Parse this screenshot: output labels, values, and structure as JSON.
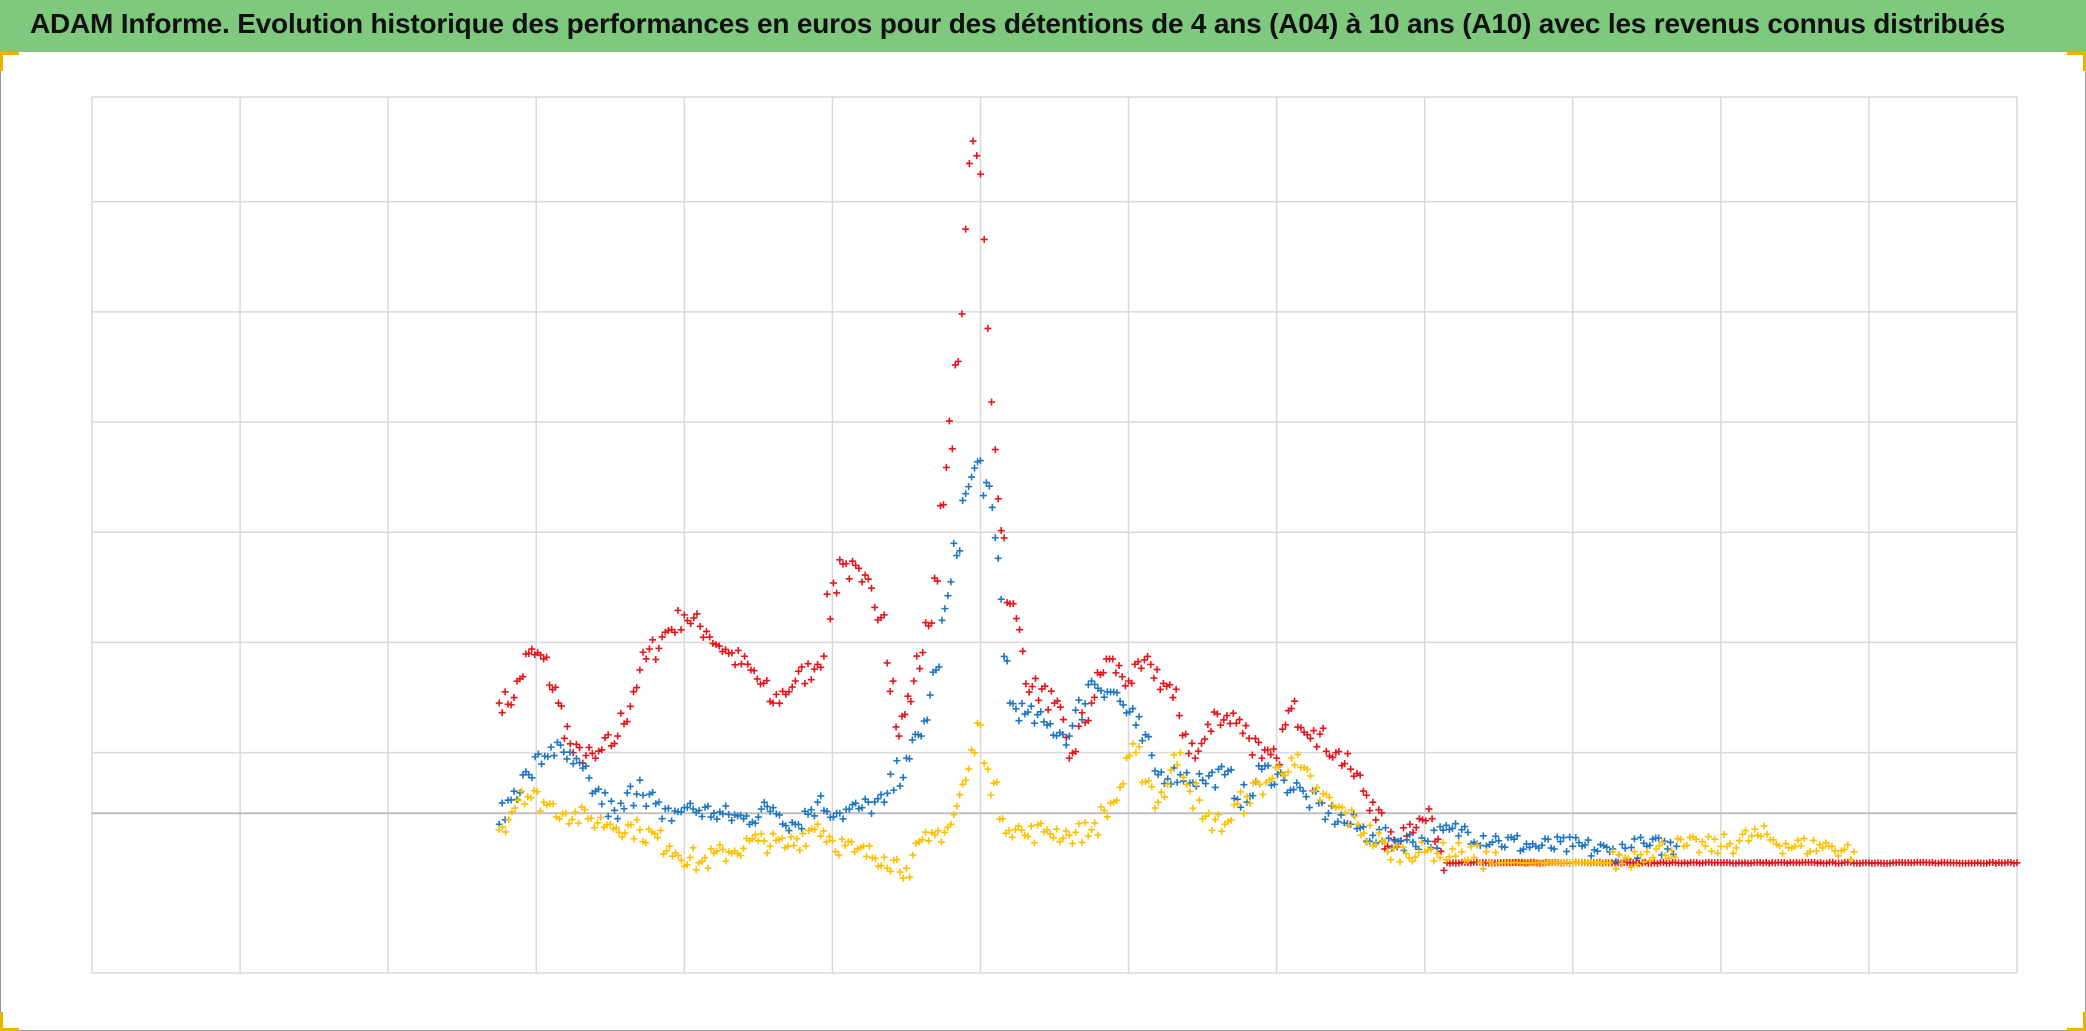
{
  "title": "ADAM Informe. Evolution historique des performances en euros pour des détentions de 4 ans (A04) à 10 ans (A10) avec les revenus connus distribués",
  "colors": {
    "title_bar": "#7fc97f",
    "grid": "#d9d9d9",
    "baseline": "#bfbfbf",
    "corner_marks": "#e8b400"
  },
  "chart_data": {
    "type": "scatter",
    "marker": "plus",
    "title": "ADAM Informe. Evolution historique des performances en euros pour des détentions de 4 ans (A04) à 10 ans (A10) avec les revenus connus distribués",
    "xlabel": "",
    "ylabel": "",
    "xlim": [
      0,
      13
    ],
    "ylim": [
      -1.45,
      6.5
    ],
    "grid": true,
    "gridlines_x": [
      1,
      2,
      3,
      4,
      5,
      6,
      7,
      8,
      9,
      10,
      11,
      12,
      13
    ],
    "gridlines_y": [
      0,
      0.55,
      1.55,
      2.55,
      3.55,
      4.55,
      5.55,
      6.5
    ],
    "legend": "none",
    "series": [
      {
        "color": "#e8131b",
        "points": [
          [
            2.75,
            1.0
          ],
          [
            2.85,
            1.05
          ],
          [
            2.95,
            1.45
          ],
          [
            3.05,
            1.4
          ],
          [
            3.15,
            1.0
          ],
          [
            3.25,
            0.55
          ],
          [
            3.4,
            0.5
          ],
          [
            3.55,
            0.7
          ],
          [
            3.7,
            1.3
          ],
          [
            3.85,
            1.6
          ],
          [
            4.0,
            1.8
          ],
          [
            4.15,
            1.65
          ],
          [
            4.3,
            1.45
          ],
          [
            4.45,
            1.3
          ],
          [
            4.6,
            1.0
          ],
          [
            4.75,
            1.2
          ],
          [
            4.9,
            1.35
          ],
          [
            5.05,
            2.3
          ],
          [
            5.2,
            2.1
          ],
          [
            5.35,
            1.8
          ],
          [
            5.45,
            0.7
          ],
          [
            5.55,
            1.2
          ],
          [
            5.65,
            1.7
          ],
          [
            5.75,
            2.8
          ],
          [
            5.85,
            4.1
          ],
          [
            5.9,
            5.3
          ],
          [
            5.95,
            6.1
          ],
          [
            6.0,
            5.8
          ],
          [
            6.05,
            4.4
          ],
          [
            6.1,
            3.3
          ],
          [
            6.2,
            1.9
          ],
          [
            6.35,
            1.15
          ],
          [
            6.5,
            1.0
          ],
          [
            6.6,
            0.5
          ],
          [
            6.75,
            1.0
          ],
          [
            6.85,
            1.4
          ],
          [
            7.0,
            1.2
          ],
          [
            7.15,
            1.35
          ],
          [
            7.3,
            1.05
          ],
          [
            7.45,
            0.5
          ],
          [
            7.6,
            0.9
          ],
          [
            7.75,
            0.85
          ],
          [
            7.9,
            0.5
          ],
          [
            8.0,
            0.5
          ],
          [
            8.1,
            0.95
          ],
          [
            8.25,
            0.75
          ],
          [
            8.4,
            0.55
          ],
          [
            8.5,
            0.4
          ],
          [
            8.65,
            0.1
          ],
          [
            8.75,
            -0.3
          ],
          [
            8.9,
            -0.1
          ],
          [
            9.05,
            -0.05
          ],
          [
            9.15,
            -0.45
          ],
          [
            10.0,
            -0.45
          ],
          [
            11.0,
            -0.45
          ],
          [
            12.0,
            -0.45
          ],
          [
            13.0,
            -0.45
          ]
        ]
      },
      {
        "color": "#1f77c4",
        "points": [
          [
            2.75,
            -0.1
          ],
          [
            2.85,
            0.2
          ],
          [
            2.95,
            0.35
          ],
          [
            3.1,
            0.6
          ],
          [
            3.25,
            0.45
          ],
          [
            3.4,
            0.2
          ],
          [
            3.55,
            -0.05
          ],
          [
            3.7,
            0.3
          ],
          [
            3.85,
            -0.05
          ],
          [
            4.0,
            0.05
          ],
          [
            4.2,
            0.0
          ],
          [
            4.4,
            -0.05
          ],
          [
            4.6,
            0.05
          ],
          [
            4.75,
            -0.1
          ],
          [
            4.9,
            0.1
          ],
          [
            5.05,
            0.0
          ],
          [
            5.2,
            0.05
          ],
          [
            5.35,
            0.1
          ],
          [
            5.5,
            0.5
          ],
          [
            5.6,
            0.7
          ],
          [
            5.7,
            1.3
          ],
          [
            5.8,
            2.1
          ],
          [
            5.9,
            2.9
          ],
          [
            6.0,
            3.2
          ],
          [
            6.1,
            2.5
          ],
          [
            6.2,
            1.0
          ],
          [
            6.3,
            0.9
          ],
          [
            6.45,
            0.8
          ],
          [
            6.6,
            0.7
          ],
          [
            6.75,
            1.2
          ],
          [
            6.9,
            1.1
          ],
          [
            7.05,
            0.8
          ],
          [
            7.2,
            0.35
          ],
          [
            7.35,
            0.35
          ],
          [
            7.5,
            0.3
          ],
          [
            7.65,
            0.35
          ],
          [
            7.8,
            0.1
          ],
          [
            7.9,
            0.4
          ],
          [
            8.05,
            0.3
          ],
          [
            8.2,
            0.15
          ],
          [
            8.35,
            0.0
          ],
          [
            8.5,
            -0.1
          ],
          [
            8.65,
            -0.2
          ],
          [
            8.8,
            -0.25
          ],
          [
            9.0,
            -0.25
          ],
          [
            9.25,
            -0.15
          ],
          [
            9.5,
            -0.25
          ],
          [
            9.75,
            -0.3
          ],
          [
            10.0,
            -0.3
          ],
          [
            10.25,
            -0.35
          ],
          [
            10.5,
            -0.3
          ],
          [
            10.7,
            -0.3
          ]
        ]
      },
      {
        "color": "#ffc000",
        "points": [
          [
            2.75,
            -0.15
          ],
          [
            2.9,
            0.2
          ],
          [
            3.05,
            0.1
          ],
          [
            3.2,
            0.0
          ],
          [
            3.35,
            -0.05
          ],
          [
            3.5,
            -0.1
          ],
          [
            3.7,
            -0.15
          ],
          [
            3.9,
            -0.3
          ],
          [
            4.1,
            -0.45
          ],
          [
            4.3,
            -0.35
          ],
          [
            4.5,
            -0.25
          ],
          [
            4.7,
            -0.3
          ],
          [
            4.9,
            -0.1
          ],
          [
            5.0,
            -0.25
          ],
          [
            5.15,
            -0.35
          ],
          [
            5.35,
            -0.4
          ],
          [
            5.5,
            -0.5
          ],
          [
            5.65,
            -0.25
          ],
          [
            5.8,
            -0.1
          ],
          [
            5.9,
            0.3
          ],
          [
            6.0,
            0.8
          ],
          [
            6.05,
            0.4
          ],
          [
            6.15,
            -0.05
          ],
          [
            6.3,
            -0.2
          ],
          [
            6.45,
            -0.15
          ],
          [
            6.6,
            -0.2
          ],
          [
            6.75,
            -0.15
          ],
          [
            6.9,
            0.1
          ],
          [
            7.05,
            0.55
          ],
          [
            7.2,
            0.1
          ],
          [
            7.35,
            0.55
          ],
          [
            7.5,
            -0.05
          ],
          [
            7.65,
            -0.1
          ],
          [
            7.8,
            0.15
          ],
          [
            7.95,
            0.3
          ],
          [
            8.1,
            0.5
          ],
          [
            8.25,
            0.2
          ],
          [
            8.4,
            0.05
          ],
          [
            8.55,
            -0.1
          ],
          [
            8.75,
            -0.35
          ],
          [
            9.0,
            -0.35
          ],
          [
            9.25,
            -0.35
          ],
          [
            9.5,
            -0.45
          ],
          [
            9.75,
            -0.45
          ],
          [
            10.0,
            -0.45
          ],
          [
            10.25,
            -0.45
          ],
          [
            10.5,
            -0.35
          ],
          [
            10.75,
            -0.3
          ],
          [
            11.0,
            -0.3
          ],
          [
            11.25,
            -0.2
          ],
          [
            11.5,
            -0.3
          ],
          [
            11.75,
            -0.3
          ],
          [
            11.9,
            -0.35
          ]
        ]
      }
    ]
  }
}
